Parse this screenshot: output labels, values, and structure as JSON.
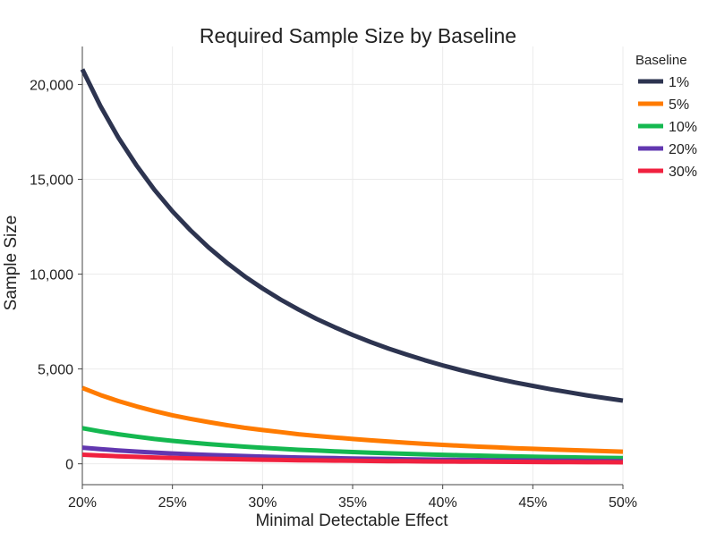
{
  "chart_data": {
    "type": "line",
    "title": "Required Sample Size by Baseline",
    "xlabel": "Minimal Detectable Effect",
    "ylabel": "Sample Size",
    "x_unit": "percent",
    "xlim": [
      20,
      50
    ],
    "ylim": [
      -1100,
      22000
    ],
    "x_ticks": [
      20,
      25,
      30,
      35,
      40,
      45,
      50
    ],
    "x_tick_labels": [
      "20%",
      "25%",
      "30%",
      "35%",
      "40%",
      "45%",
      "50%"
    ],
    "y_ticks": [
      0,
      5000,
      10000,
      15000,
      20000
    ],
    "y_tick_labels": [
      "0",
      "5,000",
      "10,000",
      "15,000",
      "20,000"
    ],
    "grid": true,
    "legend": {
      "title": "Baseline",
      "position": "top-right"
    },
    "x": [
      20,
      21,
      22,
      23,
      24,
      25,
      26,
      27,
      28,
      29,
      30,
      31,
      32,
      33,
      34,
      35,
      36,
      37,
      38,
      39,
      40,
      41,
      42,
      43,
      44,
      45,
      46,
      47,
      48,
      49,
      50
    ],
    "series": [
      {
        "name": "1%",
        "color": "#2d3450",
        "values": [
          20800,
          18870,
          17190,
          15740,
          14450,
          13310,
          12310,
          11410,
          10610,
          9890,
          9250,
          8660,
          8130,
          7640,
          7200,
          6790,
          6420,
          6070,
          5760,
          5460,
          5190,
          4940,
          4710,
          4490,
          4290,
          4110,
          3930,
          3770,
          3610,
          3470,
          3330
        ]
      },
      {
        "name": "5%",
        "color": "#ff7b00",
        "values": [
          4000,
          3630,
          3310,
          3030,
          2780,
          2560,
          2370,
          2200,
          2040,
          1900,
          1780,
          1670,
          1560,
          1470,
          1390,
          1310,
          1240,
          1170,
          1110,
          1050,
          1000,
          950,
          905,
          865,
          825,
          790,
          756,
          725,
          695,
          668,
          640
        ]
      },
      {
        "name": "10%",
        "color": "#14b850",
        "values": [
          1880,
          1710,
          1560,
          1430,
          1310,
          1210,
          1120,
          1040,
          970,
          905,
          845,
          790,
          740,
          700,
          660,
          620,
          588,
          556,
          527,
          500,
          475,
          452,
          430,
          410,
          392,
          375,
          358,
          343,
          329,
          316,
          303
        ]
      },
      {
        "name": "20%",
        "color": "#6237b0",
        "values": [
          850,
          772,
          704,
          645,
          592,
          546,
          505,
          469,
          437,
          408,
          381,
          357,
          335,
          316,
          298,
          281,
          266,
          252,
          239,
          227,
          216,
          205,
          196,
          187,
          179,
          171,
          163,
          157,
          150,
          144,
          138
        ]
      },
      {
        "name": "30%",
        "color": "#f0213f",
        "values": [
          480,
          436,
          397,
          364,
          334,
          308,
          285,
          265,
          246,
          230,
          215,
          201,
          189,
          178,
          168,
          158,
          150,
          142,
          135,
          128,
          122,
          116,
          110,
          105,
          101,
          96,
          92,
          88,
          84,
          81,
          78
        ]
      }
    ]
  }
}
